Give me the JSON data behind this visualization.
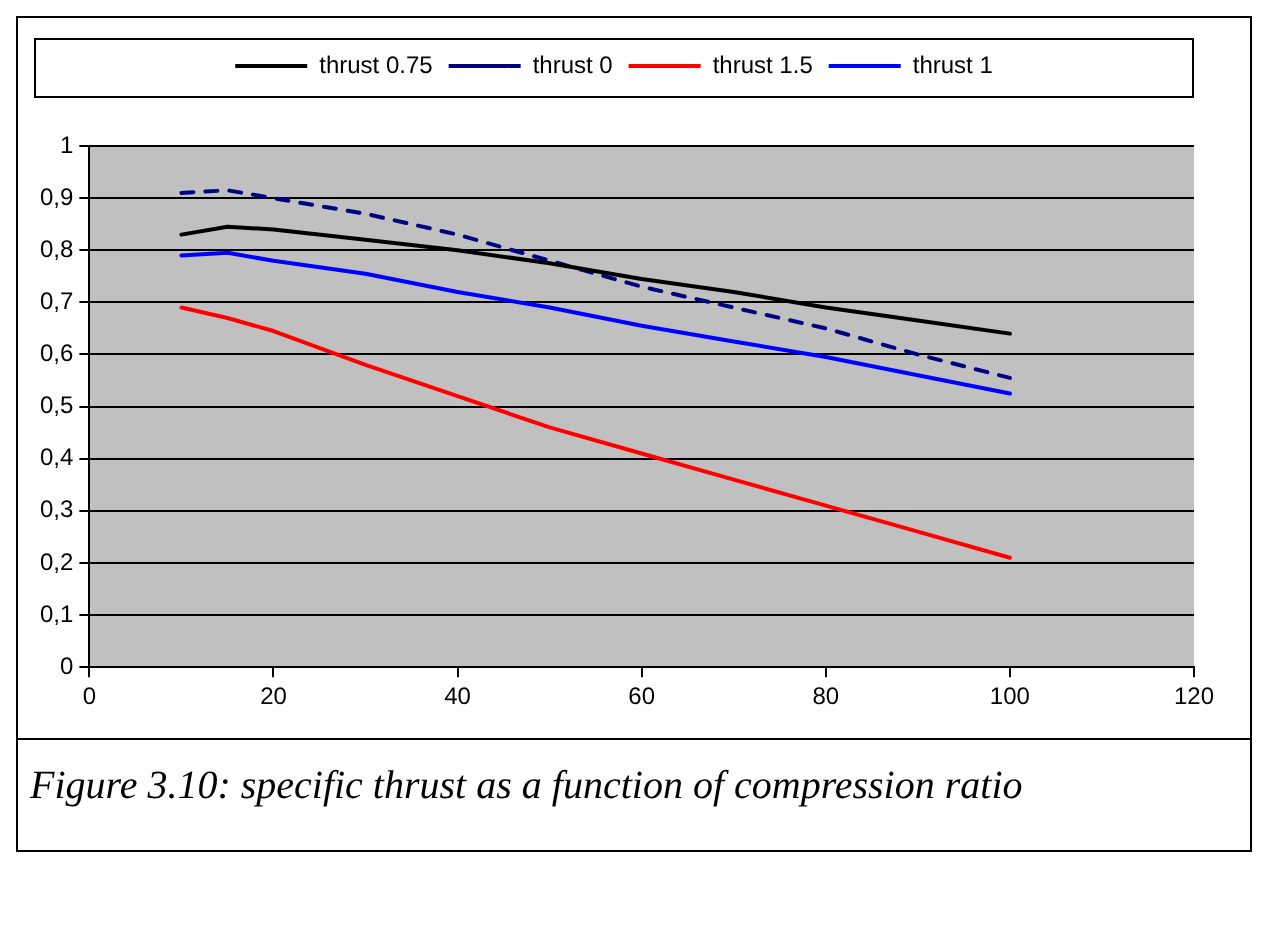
{
  "chart_data": {
    "type": "line",
    "x": [
      10,
      15,
      20,
      30,
      40,
      50,
      60,
      70,
      80,
      90,
      100
    ],
    "series": [
      {
        "name": "thrust 0.75",
        "color": "#000000",
        "values": [
          0.83,
          0.845,
          0.84,
          0.82,
          0.8,
          0.775,
          0.745,
          0.72,
          0.69,
          0.665,
          0.64
        ]
      },
      {
        "name": "thrust 0",
        "color": "#000080",
        "line_style": "dashed",
        "values": [
          0.91,
          0.915,
          0.9,
          0.87,
          0.83,
          0.78,
          0.73,
          0.69,
          0.65,
          0.6,
          0.555
        ]
      },
      {
        "name": "thrust 1.5",
        "color": "#ff0000",
        "values": [
          0.69,
          0.67,
          0.645,
          0.58,
          0.52,
          0.46,
          0.41,
          0.36,
          0.31,
          0.26,
          0.21
        ]
      },
      {
        "name": "thrust 1",
        "color": "#0000ff",
        "values": [
          0.79,
          0.795,
          0.78,
          0.755,
          0.72,
          0.69,
          0.655,
          0.625,
          0.595,
          0.56,
          0.525
        ]
      }
    ],
    "xlim": [
      0,
      120
    ],
    "xticks": [
      0,
      20,
      40,
      60,
      80,
      100,
      120
    ],
    "ylim": [
      0,
      1
    ],
    "yticks": [
      0,
      {
        "value": 0.1,
        "label": "0,1"
      },
      {
        "value": 0.2,
        "label": "0,2"
      },
      {
        "value": 0.3,
        "label": "0,3"
      },
      {
        "value": 0.4,
        "label": "0,4"
      },
      {
        "value": 0.5,
        "label": "0,5"
      },
      {
        "value": 0.6,
        "label": "0,6"
      },
      {
        "value": 0.7,
        "label": "0,7"
      },
      {
        "value": 0.8,
        "label": "0,8"
      },
      {
        "value": 0.9,
        "label": "0,9"
      },
      1
    ],
    "grid": "y",
    "legend": "top",
    "marker": "none",
    "line_style": "solid",
    "annotations": [
      "Figure 3.10: specific thrust as a function of compression ratio"
    ]
  }
}
